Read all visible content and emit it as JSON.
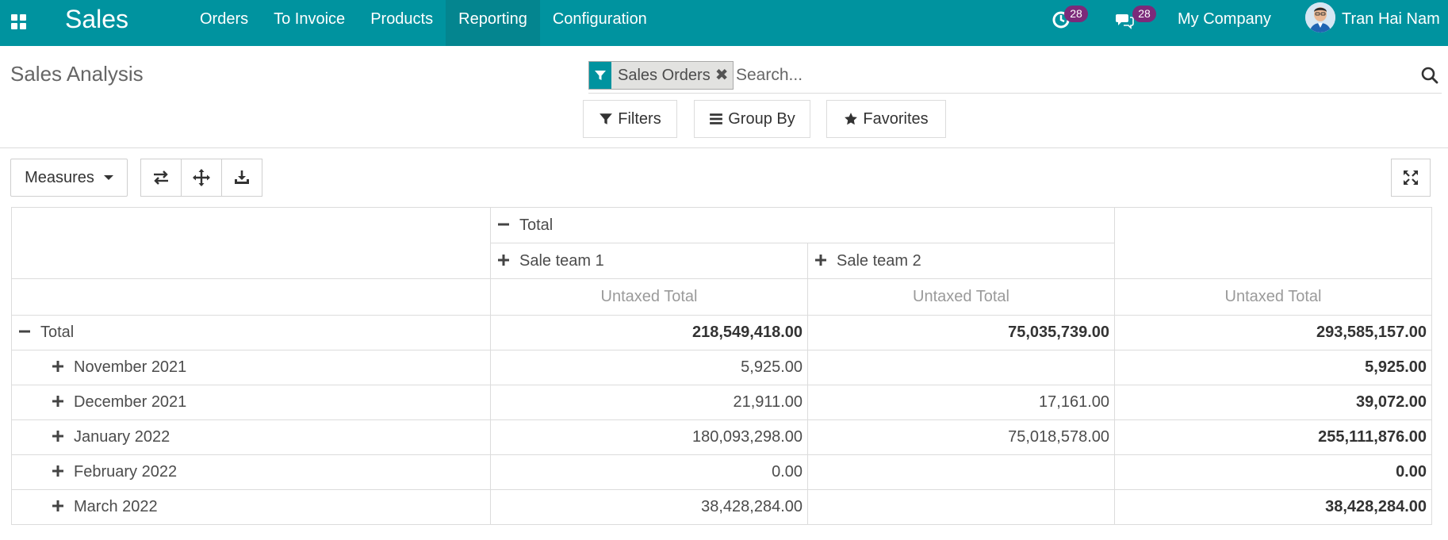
{
  "navbar": {
    "brand": "Sales",
    "menu": [
      "Orders",
      "To Invoice",
      "Products",
      "Reporting",
      "Configuration"
    ],
    "activities_count": "28",
    "messages_count": "28",
    "company": "My Company",
    "user_name": "Tran Hai Nam"
  },
  "control_panel": {
    "title": "Sales Analysis",
    "facet_label": "Sales Orders",
    "facet_remove": "✖",
    "search_placeholder": "Search...",
    "filters_label": "Filters",
    "group_by_label": "Group By",
    "favorites_label": "Favorites"
  },
  "toolbar": {
    "measures_label": "Measures"
  },
  "pivot": {
    "col_total_label": "Total",
    "col_groups": [
      "Sale team 1",
      "Sale team 2"
    ],
    "measure_label": "Untaxed Total",
    "row_total_label": "Total",
    "total_row": [
      "218,549,418.00",
      "75,035,739.00",
      "293,585,157.00"
    ],
    "rows": [
      {
        "label": "November 2021",
        "team1": "5,925.00",
        "team2": "",
        "total": "5,925.00"
      },
      {
        "label": "December 2021",
        "team1": "21,911.00",
        "team2": "17,161.00",
        "total": "39,072.00"
      },
      {
        "label": "January 2022",
        "team1": "180,093,298.00",
        "team2": "75,018,578.00",
        "total": "255,111,876.00"
      },
      {
        "label": "February 2022",
        "team1": "0.00",
        "team2": "",
        "total": "0.00"
      },
      {
        "label": "March 2022",
        "team1": "38,428,284.00",
        "team2": "",
        "total": "38,428,284.00"
      }
    ]
  },
  "colors": {
    "navbar": "#00939f",
    "badge": "#7c2a7a"
  }
}
